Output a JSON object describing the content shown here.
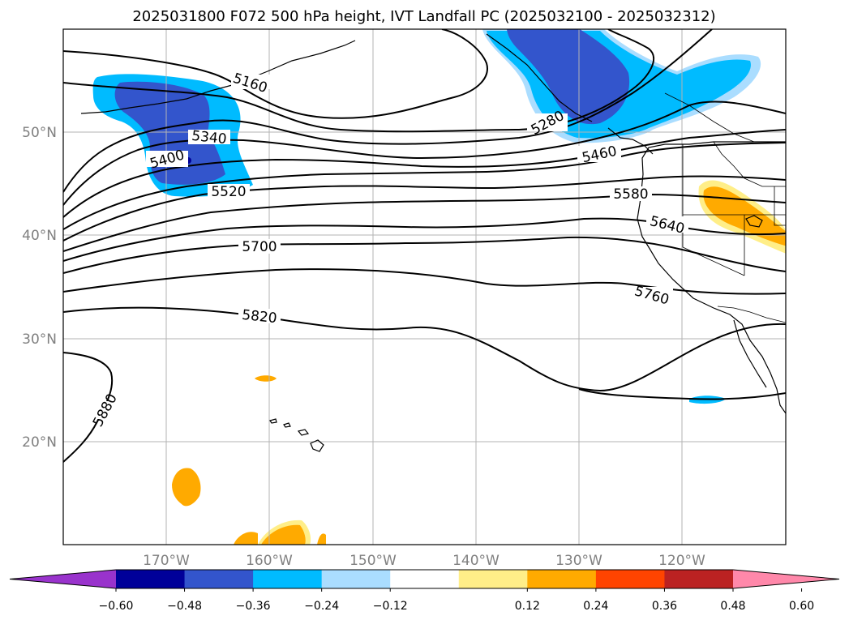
{
  "title": "2025031800 F072 500 hPa height, IVT Landfall PC (2025032100 - 2025032312)",
  "map": {
    "lat_labels": [
      "50°N",
      "40°N",
      "30°N",
      "20°N"
    ],
    "lon_labels": [
      "170°W",
      "160°W",
      "150°W",
      "140°W",
      "130°W",
      "120°W"
    ],
    "gridlines": true
  },
  "height_contours": {
    "labels": [
      "5160",
      "5280",
      "5340",
      "5400",
      "5460",
      "5520",
      "5580",
      "5640",
      "5700",
      "5760",
      "5820",
      "5880"
    ]
  },
  "colorbar": {
    "extend": "both",
    "colors": [
      "#9933cc",
      "#000099",
      "#3355cc",
      "#00bbff",
      "#aaddff",
      "#ffffff",
      "#ffee88",
      "#ffaa00",
      "#ff4400",
      "#bb2222",
      "#ff88aa"
    ],
    "tick_labels": [
      "−0.60",
      "−0.48",
      "−0.36",
      "−0.24",
      "−0.12",
      "0.12",
      "0.24",
      "0.36",
      "0.48",
      "0.60"
    ]
  }
}
